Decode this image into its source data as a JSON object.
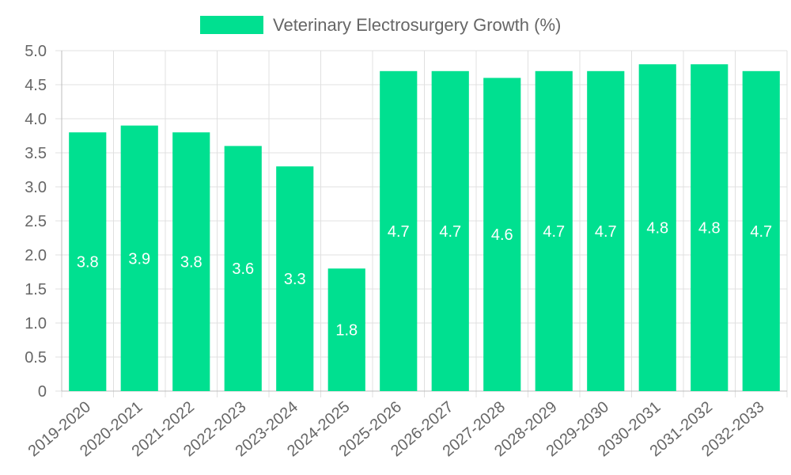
{
  "chart_data": {
    "type": "bar",
    "title": "",
    "xlabel": "",
    "ylabel": "",
    "ylim": [
      0,
      5.0
    ],
    "y_ticks": [
      "0",
      "0.5",
      "1.0",
      "1.5",
      "2.0",
      "2.5",
      "3.0",
      "3.5",
      "4.0",
      "4.5",
      "5.0"
    ],
    "categories": [
      "2019-2020",
      "2020-2021",
      "2021-2022",
      "2022-2023",
      "2023-2024",
      "2024-2025",
      "2025-2026",
      "2026-2027",
      "2027-2028",
      "2028-2029",
      "2029-2030",
      "2030-2031",
      "2031-2032",
      "2032-2033"
    ],
    "series": [
      {
        "name": "Veterinary Electrosurgery Growth (%)",
        "color": "#00e090",
        "values": [
          3.8,
          3.9,
          3.8,
          3.6,
          3.3,
          1.8,
          4.7,
          4.7,
          4.6,
          4.7,
          4.7,
          4.8,
          4.8,
          4.7
        ],
        "labels": [
          "3.8",
          "3.9",
          "3.8",
          "3.6",
          "3.3",
          "1.8",
          "4.7",
          "4.7",
          "4.6",
          "4.7",
          "4.7",
          "4.8",
          "4.8",
          "4.7"
        ]
      }
    ],
    "legend": "top-center",
    "grid": true
  }
}
